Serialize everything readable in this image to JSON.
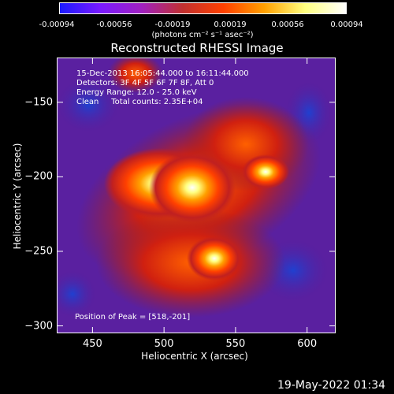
{
  "colorbar": {
    "ticks": [
      "-0.00094",
      "-0.00056",
      "-0.00019",
      "0.00019",
      "0.00056",
      "0.00094"
    ],
    "units": "(photons cm⁻² s⁻¹ asec⁻²)",
    "colors": [
      "#1a1aff",
      "#7a1aff",
      "#a020c0",
      "#c03030",
      "#ff4000",
      "#ffa000",
      "#ffff80",
      "#ffffff"
    ]
  },
  "info": {
    "time_range": "15-Dec-2013 16:05:44.000 to 16:11:44.000",
    "detectors": "Detectors: 3F 4F 5F 6F 7F 8F, Att 0",
    "energy": "Energy Range: 12.0 - 25.0 keV",
    "method": "Clean     Total counts: 2.35E+04",
    "peak": "Position of Peak = [518,-201]"
  },
  "timestamp": "19-May-2022 01:34",
  "chart_data": {
    "type": "heatmap",
    "title": "Reconstructed RHESSI Image",
    "xlabel": "Heliocentric X (arcsec)",
    "ylabel": "Heliocentric Y (arcsec)",
    "xlim": [
      425,
      620
    ],
    "ylim": [
      -305,
      -120
    ],
    "xticks": [
      450,
      500,
      550,
      600
    ],
    "yticks": [
      -150,
      -200,
      -250,
      -300
    ],
    "zlim": [
      -0.00094,
      0.00094
    ],
    "peak": {
      "x": 518,
      "y": -201
    }
  }
}
